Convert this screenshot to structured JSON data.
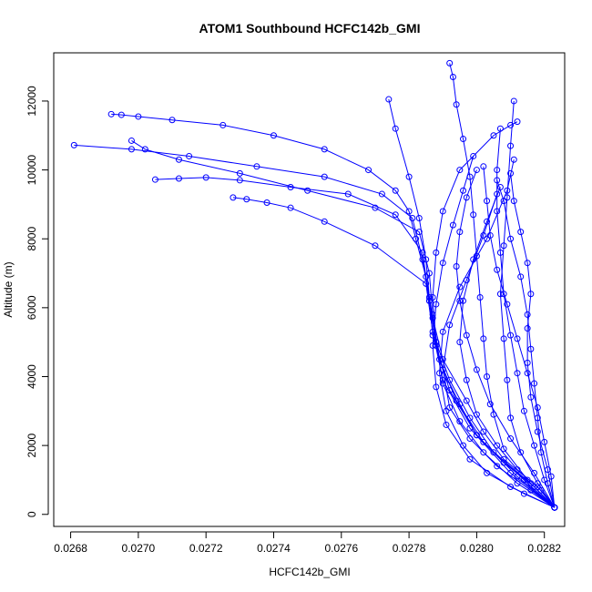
{
  "chart_data": {
    "type": "line",
    "title": "ATOM1 Southbound HCFC142b_GMI",
    "xlabel": "HCFC142b_GMI",
    "ylabel": "Altitude (m)",
    "xlim": [
      0.02675,
      0.02826
    ],
    "ylim": [
      -350,
      13400
    ],
    "x_ticks": [
      0.0268,
      0.027,
      0.0272,
      0.0274,
      0.0276,
      0.0278,
      0.028,
      0.0282
    ],
    "x_tick_labels": [
      "0.0268",
      "0.0270",
      "0.0272",
      "0.0274",
      "0.0276",
      "0.0278",
      "0.0280",
      "0.0282"
    ],
    "y_ticks": [
      0,
      2000,
      4000,
      6000,
      8000,
      10000,
      12000
    ],
    "y_tick_labels": [
      "0",
      "2000",
      "4000",
      "6000",
      "8000",
      "10000",
      "12000"
    ],
    "grid": false,
    "marker": "open-circle",
    "series_color": "#0000ff",
    "series": [
      {
        "x": [
          0.02823,
          0.02818,
          0.02808,
          0.02802,
          0.02797,
          0.0279,
          0.02787,
          0.02785,
          0.02782,
          0.0278,
          0.02776,
          0.02768,
          0.02755,
          0.0274,
          0.02725,
          0.0271,
          0.027,
          0.02695,
          0.02692
        ],
        "y": [
          200,
          800,
          1600,
          2400,
          3300,
          4500,
          5700,
          6900,
          8000,
          8800,
          9400,
          10000,
          10600,
          11000,
          11300,
          11450,
          11550,
          11600,
          11620
        ]
      },
      {
        "x": [
          0.02823,
          0.02816,
          0.02805,
          0.02798,
          0.02792,
          0.02788,
          0.02786,
          0.02784,
          0.02781,
          0.02772,
          0.02755,
          0.02735,
          0.02715,
          0.02698,
          0.02681
        ],
        "y": [
          200,
          900,
          1800,
          2800,
          3900,
          5000,
          6200,
          7400,
          8600,
          9300,
          9800,
          10100,
          10400,
          10600,
          10720
        ]
      },
      {
        "x": [
          0.02823,
          0.02814,
          0.02802,
          0.02794,
          0.02789,
          0.02787,
          0.02786,
          0.02783,
          0.0277,
          0.0275,
          0.0273,
          0.02712,
          0.02702,
          0.02698
        ],
        "y": [
          200,
          1000,
          2100,
          3300,
          4500,
          5800,
          7000,
          8200,
          8900,
          9400,
          9900,
          10300,
          10600,
          10850
        ]
      },
      {
        "x": [
          0.02823,
          0.02812,
          0.028,
          0.02792,
          0.02788,
          0.02786,
          0.02784,
          0.02776,
          0.02762,
          0.02745,
          0.0273,
          0.0272,
          0.02712,
          0.02705
        ],
        "y": [
          200,
          1100,
          2300,
          3600,
          4900,
          6200,
          7600,
          8700,
          9300,
          9500,
          9700,
          9780,
          9750,
          9720
        ]
      },
      {
        "x": [
          0.02823,
          0.0281,
          0.02798,
          0.0279,
          0.02787,
          0.02785,
          0.0277,
          0.02755,
          0.02745,
          0.02738,
          0.02732,
          0.02728
        ],
        "y": [
          200,
          1200,
          2500,
          3900,
          5300,
          6700,
          7800,
          8500,
          8900,
          9050,
          9150,
          9200
        ]
      },
      {
        "x": [
          0.02823,
          0.02812,
          0.02802,
          0.02795,
          0.0279,
          0.02788,
          0.02787,
          0.02788,
          0.0279,
          0.02795,
          0.02805,
          0.0281,
          0.02812
        ],
        "y": [
          200,
          900,
          1800,
          2700,
          3800,
          5000,
          6300,
          7600,
          8800,
          10000,
          11000,
          11300,
          11400
        ]
      },
      {
        "x": [
          0.02823,
          0.02817,
          0.02808,
          0.028,
          0.02795,
          0.0279,
          0.02787,
          0.02786,
          0.02785,
          0.02783,
          0.0278,
          0.02776,
          0.02774
        ],
        "y": [
          200,
          800,
          1500,
          2300,
          3200,
          4200,
          5200,
          6300,
          7400,
          8600,
          9800,
          11200,
          12050
        ]
      },
      {
        "x": [
          0.02823,
          0.02815,
          0.02808,
          0.02805,
          0.02803,
          0.02802,
          0.02801,
          0.028,
          0.02799,
          0.02798,
          0.02796,
          0.02794,
          0.02793,
          0.02792
        ],
        "y": [
          200,
          1000,
          1900,
          2900,
          4000,
          5100,
          6300,
          7500,
          8700,
          9800,
          10900,
          11900,
          12700,
          13100
        ]
      },
      {
        "x": [
          0.02823,
          0.02818,
          0.02813,
          0.0281,
          0.02809,
          0.02808,
          0.02807,
          0.02808,
          0.02809,
          0.0281,
          0.02811
        ],
        "y": [
          200,
          900,
          1800,
          2800,
          3900,
          5100,
          6400,
          7800,
          9200,
          10700,
          12000
        ]
      },
      {
        "x": [
          0.02823,
          0.0282,
          0.02817,
          0.02814,
          0.02812,
          0.0281,
          0.02808,
          0.02807,
          0.02806,
          0.02806,
          0.02807
        ],
        "y": [
          200,
          1000,
          2000,
          3000,
          4100,
          5200,
          6400,
          7600,
          8800,
          10000,
          11200
        ]
      },
      {
        "x": [
          0.02823,
          0.02821,
          0.02819,
          0.02818,
          0.02817,
          0.02816,
          0.02815,
          0.02813,
          0.0281,
          0.02808,
          0.02806
        ],
        "y": [
          200,
          900,
          1800,
          2800,
          3800,
          4800,
          5800,
          6900,
          8000,
          9100,
          9700
        ]
      },
      {
        "x": [
          0.02823,
          0.02816,
          0.02806,
          0.02798,
          0.02792,
          0.0279,
          0.02792,
          0.02797,
          0.02802,
          0.02806
        ],
        "y": [
          200,
          700,
          1400,
          2200,
          3100,
          4200,
          5500,
          6800,
          8100,
          9300
        ]
      },
      {
        "x": [
          0.02823,
          0.02814,
          0.02803,
          0.02796,
          0.02791,
          0.02789,
          0.0279,
          0.02795,
          0.02803,
          0.02809,
          0.02811
        ],
        "y": [
          200,
          600,
          1200,
          2000,
          3000,
          4100,
          5300,
          6600,
          8000,
          9400,
          10300
        ]
      },
      {
        "x": [
          0.02823,
          0.02819,
          0.02812,
          0.02806,
          0.028,
          0.02797,
          0.02795,
          0.02796,
          0.02799,
          0.02803,
          0.02807
        ],
        "y": [
          200,
          700,
          1300,
          2000,
          2900,
          3900,
          5000,
          6200,
          7400,
          8500,
          9500
        ]
      },
      {
        "x": [
          0.02823,
          0.02822,
          0.0282,
          0.02818,
          0.02815,
          0.02812,
          0.02809,
          0.02806,
          0.02804,
          0.02803,
          0.02802
        ],
        "y": [
          200,
          1100,
          2100,
          3100,
          4100,
          5100,
          6100,
          7100,
          8100,
          9100,
          10100
        ]
      },
      {
        "x": [
          0.02823,
          0.0281,
          0.02798,
          0.02791,
          0.02788,
          0.02787,
          0.02788,
          0.0279,
          0.02793,
          0.02796,
          0.02799
        ],
        "y": [
          200,
          800,
          1600,
          2600,
          3700,
          4900,
          6100,
          7300,
          8400,
          9400,
          10400
        ]
      },
      {
        "x": [
          0.02823,
          0.02817,
          0.0281,
          0.02804,
          0.028,
          0.02797,
          0.02795,
          0.02794,
          0.02795,
          0.02797,
          0.028
        ],
        "y": [
          200,
          1200,
          2200,
          3200,
          4200,
          5200,
          6200,
          7200,
          8200,
          9200,
          10000
        ]
      },
      {
        "x": [
          0.02823,
          0.02821,
          0.02818,
          0.02816,
          0.02815,
          0.02815,
          0.02816,
          0.02815,
          0.02813,
          0.02811,
          0.0281
        ],
        "y": [
          200,
          1300,
          2400,
          3400,
          4400,
          5400,
          6400,
          7300,
          8200,
          9100,
          9900
        ]
      }
    ]
  }
}
